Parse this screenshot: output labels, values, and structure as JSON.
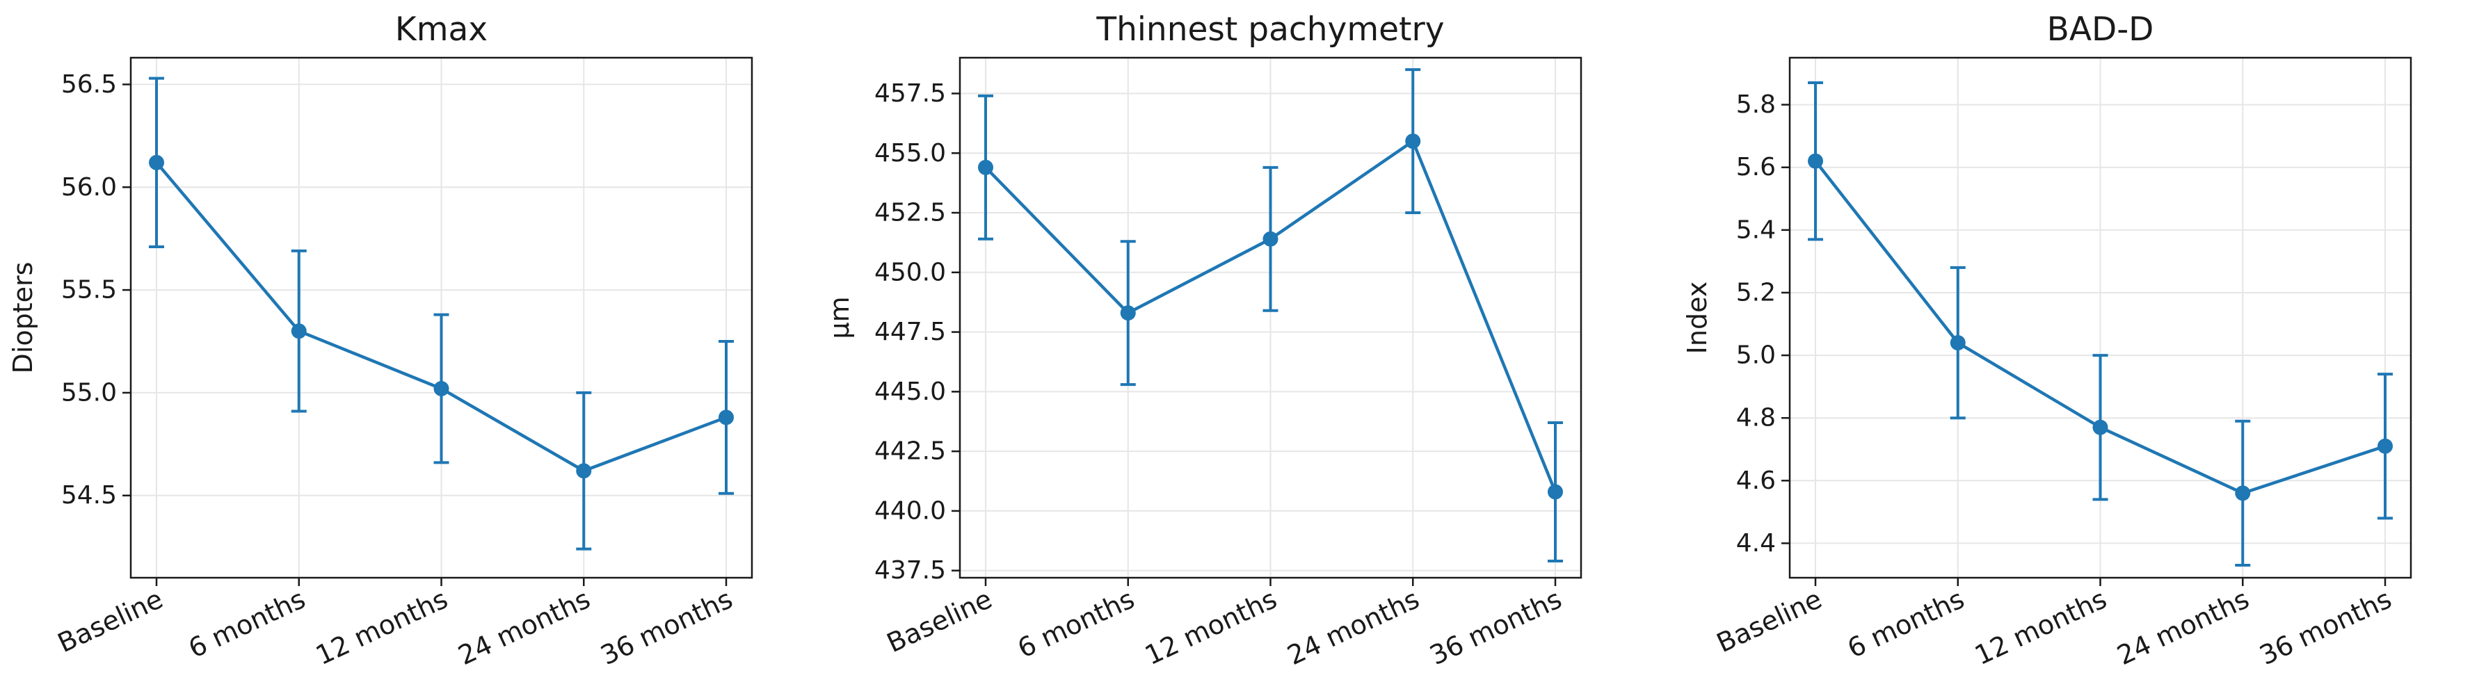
{
  "colors": {
    "series": "#1f77b4",
    "grid": "#e6e6e6",
    "axis": "#1a1a1a"
  },
  "chart_data": [
    {
      "type": "line",
      "title": "Kmax",
      "xlabel": "",
      "ylabel": "Diopters",
      "categories": [
        "Baseline",
        "6 months",
        "12 months",
        "24 months",
        "36 months"
      ],
      "series": [
        {
          "values": [
            56.12,
            55.3,
            55.02,
            54.62,
            54.88
          ],
          "error": [
            0.41,
            0.39,
            0.36,
            0.38,
            0.37
          ]
        }
      ],
      "ylim": [
        54.1,
        56.63
      ],
      "yticks": [
        54.5,
        55.0,
        55.5,
        56.0,
        56.5
      ],
      "yticklabels": [
        "54.5",
        "55.0",
        "55.5",
        "56.0",
        "56.5"
      ],
      "grid": true,
      "error_bars": true,
      "marker": "circle"
    },
    {
      "type": "line",
      "title": "Thinnest pachymetry",
      "xlabel": "",
      "ylabel": "µm",
      "categories": [
        "Baseline",
        "6 months",
        "12 months",
        "24 months",
        "36 months"
      ],
      "series": [
        {
          "values": [
            454.4,
            448.3,
            451.4,
            455.5,
            440.8
          ],
          "error": [
            3.0,
            3.0,
            3.0,
            3.0,
            2.9
          ]
        }
      ],
      "ylim": [
        437.2,
        459.0
      ],
      "yticks": [
        437.5,
        440.0,
        442.5,
        445.0,
        447.5,
        450.0,
        452.5,
        455.0,
        457.5
      ],
      "yticklabels": [
        "437.5",
        "440.0",
        "442.5",
        "445.0",
        "447.5",
        "450.0",
        "452.5",
        "455.0",
        "457.5"
      ],
      "grid": true,
      "error_bars": true,
      "marker": "circle"
    },
    {
      "type": "line",
      "title": "BAD-D",
      "xlabel": "",
      "ylabel": "Index",
      "categories": [
        "Baseline",
        "6 months",
        "12 months",
        "24 months",
        "36 months"
      ],
      "series": [
        {
          "values": [
            5.62,
            5.04,
            4.77,
            4.56,
            4.71
          ],
          "error": [
            0.25,
            0.24,
            0.23,
            0.23,
            0.23
          ]
        }
      ],
      "ylim": [
        4.29,
        5.95
      ],
      "yticks": [
        4.4,
        4.6,
        4.8,
        5.0,
        5.2,
        5.4,
        5.6,
        5.8
      ],
      "yticklabels": [
        "4.4",
        "4.6",
        "4.8",
        "5.0",
        "5.2",
        "5.4",
        "5.6",
        "5.8"
      ],
      "grid": true,
      "error_bars": true,
      "marker": "circle"
    }
  ]
}
